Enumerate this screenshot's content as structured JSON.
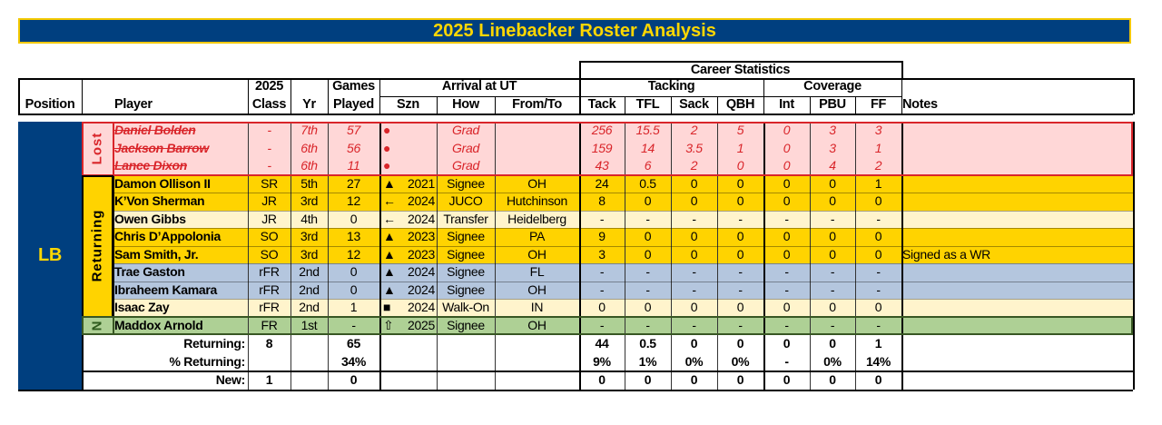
{
  "title": "2025 Linebacker Roster Analysis",
  "colors": {
    "navy": "#003f7f",
    "gold": "#ffd700",
    "lost_bg": "#ffd7d7",
    "lost_text": "#d9252a",
    "returning_gold": "#ffd300",
    "returning_cream": "#fff4cc",
    "returning_blue": "#b4c6de",
    "new_green": "#aed095"
  },
  "headers": {
    "position": "Position",
    "player": "Player",
    "class_top": "2025",
    "class_bottom": "Class",
    "yr": "Yr",
    "games_top": "Games",
    "games_bottom": "Played",
    "arrival": "Arrival at UT",
    "szn": "Szn",
    "how": "How",
    "from_to": "From/To",
    "career_stats": "Career Statistics",
    "tackling": "Tacking",
    "coverage": "Coverage",
    "tack": "Tack",
    "tfl": "TFL",
    "sack": "Sack",
    "qbh": "QBH",
    "int": "Int",
    "pbu": "PBU",
    "ff": "FF",
    "notes": "Notes"
  },
  "position_label": "LB",
  "groups": {
    "lost": "Lost",
    "returning": "Returning",
    "new": "N"
  },
  "rows": [
    {
      "group": "lost",
      "player": "Daniel Bolden",
      "class": "-",
      "yr": "7th",
      "games": "57",
      "icon": "●",
      "szn": "",
      "how": "Grad",
      "from": "",
      "tack": "256",
      "tfl": "15.5",
      "sack": "2",
      "qbh": "5",
      "int": "0",
      "pbu": "3",
      "ff": "3",
      "notes": ""
    },
    {
      "group": "lost",
      "player": "Jackson Barrow",
      "class": "-",
      "yr": "6th",
      "games": "56",
      "icon": "●",
      "szn": "",
      "how": "Grad",
      "from": "",
      "tack": "159",
      "tfl": "14",
      "sack": "3.5",
      "qbh": "1",
      "int": "0",
      "pbu": "3",
      "ff": "1",
      "notes": ""
    },
    {
      "group": "lost",
      "player": "Lance Dixon",
      "class": "-",
      "yr": "6th",
      "games": "11",
      "icon": "●",
      "szn": "",
      "how": "Grad",
      "from": "",
      "tack": "43",
      "tfl": "6",
      "sack": "2",
      "qbh": "0",
      "int": "0",
      "pbu": "4",
      "ff": "2",
      "notes": ""
    },
    {
      "group": "gold",
      "player": "Damon Ollison II",
      "class": "SR",
      "yr": "5th",
      "games": "27",
      "icon": "▲",
      "szn": "2021",
      "how": "Signee",
      "from": "OH",
      "tack": "24",
      "tfl": "0.5",
      "sack": "0",
      "qbh": "0",
      "int": "0",
      "pbu": "0",
      "ff": "1",
      "notes": ""
    },
    {
      "group": "gold",
      "player": "K’Von Sherman",
      "class": "JR",
      "yr": "3rd",
      "games": "12",
      "icon": "🡐",
      "szn": "2024",
      "how": "JUCO",
      "from": "Hutchinson",
      "tack": "8",
      "tfl": "0",
      "sack": "0",
      "qbh": "0",
      "int": "0",
      "pbu": "0",
      "ff": "0",
      "notes": ""
    },
    {
      "group": "cream",
      "player": "Owen Gibbs",
      "class": "JR",
      "yr": "4th",
      "games": "0",
      "icon": "🡐",
      "szn": "2024",
      "how": "Transfer",
      "from": "Heidelberg",
      "tack": "-",
      "tfl": "-",
      "sack": "-",
      "qbh": "-",
      "int": "-",
      "pbu": "-",
      "ff": "-",
      "notes": ""
    },
    {
      "group": "gold",
      "player": "Chris D’Appolonia",
      "class": "SO",
      "yr": "3rd",
      "games": "13",
      "icon": "▲",
      "szn": "2023",
      "how": "Signee",
      "from": "PA",
      "tack": "9",
      "tfl": "0",
      "sack": "0",
      "qbh": "0",
      "int": "0",
      "pbu": "0",
      "ff": "0",
      "notes": ""
    },
    {
      "group": "gold",
      "player": "Sam Smith, Jr.",
      "class": "SO",
      "yr": "3rd",
      "games": "12",
      "icon": "▲",
      "szn": "2023",
      "how": "Signee",
      "from": "OH",
      "tack": "3",
      "tfl": "0",
      "sack": "0",
      "qbh": "0",
      "int": "0",
      "pbu": "0",
      "ff": "0",
      "notes": "Signed as a WR"
    },
    {
      "group": "blue",
      "player": "Trae Gaston",
      "class": "rFR",
      "yr": "2nd",
      "games": "0",
      "icon": "▲",
      "szn": "2024",
      "how": "Signee",
      "from": "FL",
      "tack": "-",
      "tfl": "-",
      "sack": "-",
      "qbh": "-",
      "int": "-",
      "pbu": "-",
      "ff": "-",
      "notes": ""
    },
    {
      "group": "blue",
      "player": "Ibraheem Kamara",
      "class": "rFR",
      "yr": "2nd",
      "games": "0",
      "icon": "▲",
      "szn": "2024",
      "how": "Signee",
      "from": "OH",
      "tack": "-",
      "tfl": "-",
      "sack": "-",
      "qbh": "-",
      "int": "-",
      "pbu": "-",
      "ff": "-",
      "notes": ""
    },
    {
      "group": "cream",
      "player": "Isaac Zay",
      "class": "rFR",
      "yr": "2nd",
      "games": "1",
      "icon": "■",
      "szn": "2024",
      "how": "Walk-On",
      "from": "IN",
      "tack": "0",
      "tfl": "0",
      "sack": "0",
      "qbh": "0",
      "int": "0",
      "pbu": "0",
      "ff": "0",
      "notes": ""
    },
    {
      "group": "new",
      "player": "Maddox Arnold",
      "class": "FR",
      "yr": "1st",
      "games": "-",
      "icon": "⇧",
      "szn": "2025",
      "how": "Signee",
      "from": "OH",
      "tack": "-",
      "tfl": "-",
      "sack": "-",
      "qbh": "-",
      "int": "-",
      "pbu": "-",
      "ff": "-",
      "notes": ""
    }
  ],
  "summary": [
    {
      "label": "Returning:",
      "class": "8",
      "games": "65",
      "tack": "44",
      "tfl": "0.5",
      "sack": "0",
      "qbh": "0",
      "int": "0",
      "pbu": "0",
      "ff": "1"
    },
    {
      "label": "% Returning:",
      "class": "",
      "games": "34%",
      "tack": "9%",
      "tfl": "1%",
      "sack": "0%",
      "qbh": "0%",
      "int": "-",
      "pbu": "0%",
      "ff": "14%"
    },
    {
      "label": "New:",
      "class": "1",
      "games": "0",
      "tack": "0",
      "tfl": "0",
      "sack": "0",
      "qbh": "0",
      "int": "0",
      "pbu": "0",
      "ff": "0"
    }
  ]
}
